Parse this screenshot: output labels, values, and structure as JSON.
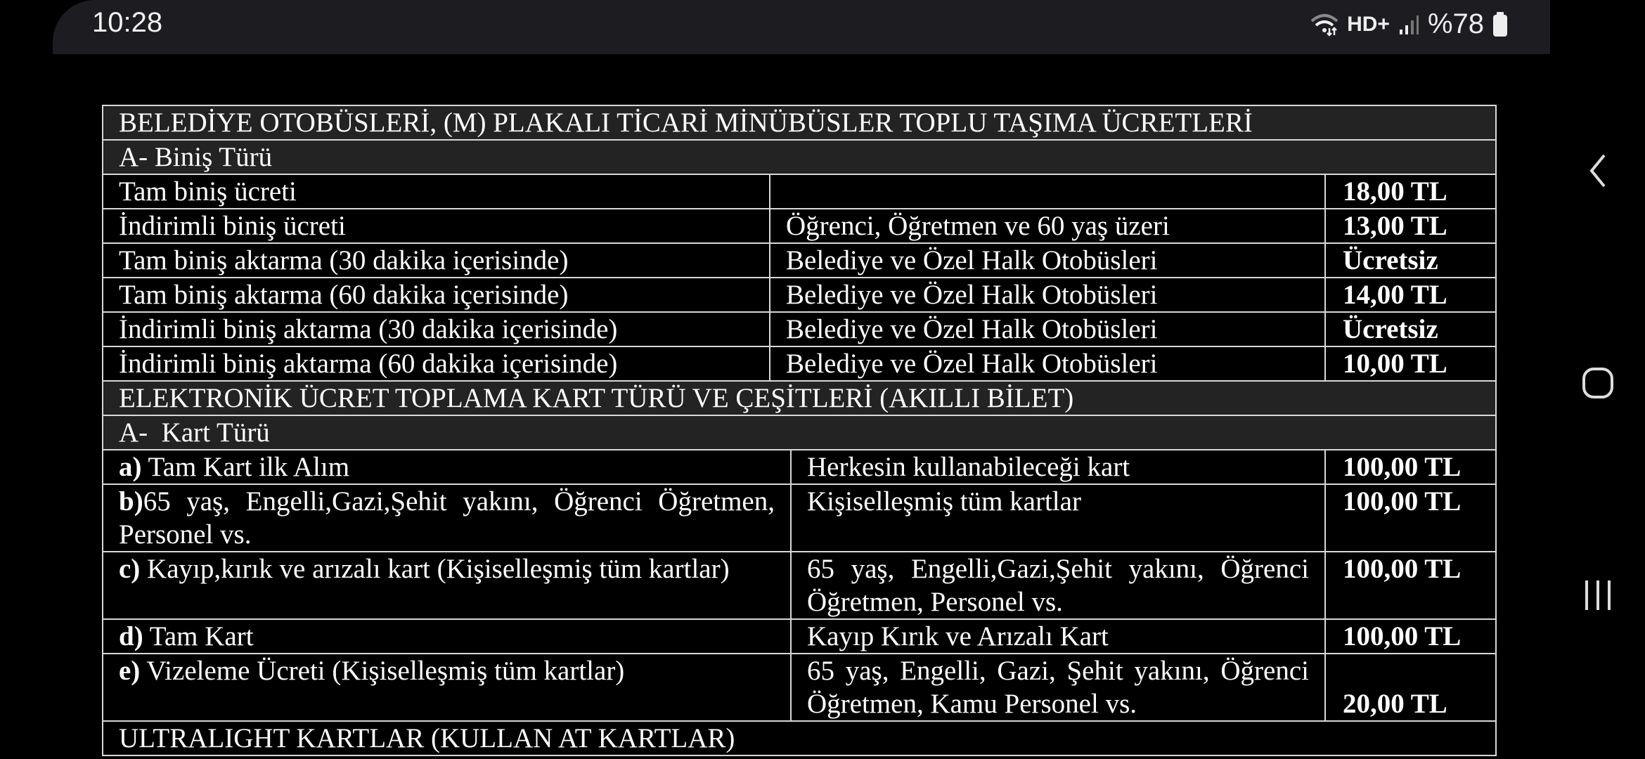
{
  "status_bar": {
    "time": "10:28",
    "network": "HD+",
    "battery": "%78",
    "icons": [
      "wifi-icon",
      "hd-voice-icon",
      "signal-icon",
      "battery-icon"
    ]
  },
  "nav_bar": {
    "icons": [
      "back-icon",
      "home-icon",
      "recents-icon"
    ]
  },
  "table1": {
    "title": "BELEDİYE OTOBÜSLERİ, (M) PLAKALI TİCARİ MİNÜBÜSLER TOPLU TAŞIMA ÜCRETLERİ",
    "section": "A- Biniş Türü",
    "rows": [
      {
        "type": "Tam biniş ücreti",
        "applies": "",
        "price": "18,00 TL"
      },
      {
        "type": "İndirimli biniş ücreti",
        "applies": "Öğrenci, Öğretmen ve 60 yaş üzeri",
        "price": "13,00 TL"
      },
      {
        "type": "Tam biniş aktarma (30 dakika içerisinde)",
        "applies": "Belediye ve Özel Halk Otobüsleri",
        "price": "Ücretsiz"
      },
      {
        "type": "Tam biniş aktarma (60 dakika içerisinde)",
        "applies": "Belediye ve Özel Halk Otobüsleri",
        "price": "14,00 TL"
      },
      {
        "type": "İndirimli biniş aktarma (30 dakika içerisinde)",
        "applies": "Belediye ve Özel Halk Otobüsleri",
        "price": "Ücretsiz"
      },
      {
        "type": "İndirimli biniş aktarma (60 dakika içerisinde)",
        "applies": "Belediye ve Özel Halk Otobüsleri",
        "price": "10,00 TL"
      }
    ]
  },
  "table2": {
    "title": "ELEKTRONİK ÜCRET TOPLAMA KART TÜRÜ VE ÇEŞİTLERİ (AKILLI BİLET)",
    "section": "A-  Kart Türü",
    "rows": [
      {
        "letter": "a)",
        "type": " Tam Kart ilk Alım",
        "applies": "Herkesin kullanabileceği kart",
        "price": "100,00 TL"
      },
      {
        "letter": "b)",
        "type": "65 yaş, Engelli,Gazi,Şehit yakını, Öğrenci Öğretmen, Personel vs.",
        "applies": "Kişiselleşmiş tüm kartlar",
        "price": "100,00 TL"
      },
      {
        "letter": "c)",
        "type": " Kayıp,kırık ve arızalı kart (Kişiselleşmiş tüm kartlar)",
        "applies": "65 yaş, Engelli,Gazi,Şehit yakını, Öğrenci Öğretmen, Personel vs.",
        "price": "100,00 TL"
      },
      {
        "letter": "d)",
        "type": " Tam Kart",
        "applies": "Kayıp Kırık ve Arızalı Kart",
        "price": "100,00 TL"
      },
      {
        "letter": "e)",
        "type": " Vizeleme Ücreti (Kişiselleşmiş tüm kartlar)",
        "applies": "65 yaş, Engelli, Gazi, Şehit yakını, Öğrenci Öğretmen, Kamu Personel vs.",
        "price": "20,00 TL"
      }
    ],
    "footer": "ULTRALIGHT KARTLAR (KULLAN AT KARTLAR)"
  }
}
